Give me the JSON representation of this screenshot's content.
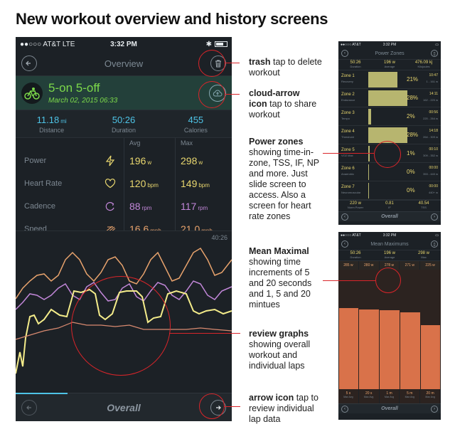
{
  "page_title": "New workout overview and history screens",
  "main_phone": {
    "status": {
      "carrier": "●●○○○ AT&T  LTE",
      "time": "3:32 PM",
      "bluetooth": "✱"
    },
    "nav_title": "Overview",
    "workout": {
      "name": "5-on 5-off",
      "date": "March 02, 2015  06:33"
    },
    "stats": [
      {
        "value": "11.18",
        "unit": "mi",
        "label": "Distance"
      },
      {
        "value": "50:26",
        "unit": "",
        "label": "Duration"
      },
      {
        "value": "455",
        "unit": "",
        "label": "Calories"
      }
    ],
    "metric_headers": {
      "avg": "Avg",
      "max": "Max"
    },
    "metrics": [
      {
        "name": "Power",
        "icon": "lightning-icon",
        "avg": "196",
        "avg_unit": "w",
        "max": "298",
        "max_unit": "w"
      },
      {
        "name": "Heart Rate",
        "icon": "heart-icon",
        "avg": "120",
        "avg_unit": "bpm",
        "max": "149",
        "max_unit": "bpm"
      },
      {
        "name": "Cadence",
        "icon": "cadence-icon",
        "avg": "88",
        "avg_unit": "rpm",
        "max": "117",
        "max_unit": "rpm"
      },
      {
        "name": "Speed",
        "icon": "speed-icon",
        "avg": "16.6",
        "avg_unit": "mph",
        "max": "21.0",
        "max_unit": "mph"
      }
    ],
    "graph_time": "40:26",
    "overall_label": "Overall",
    "progress_fraction": 0.24
  },
  "annotations": {
    "trash": {
      "title": "trash",
      "text": " tap to delete workout"
    },
    "cloud": {
      "title": "cloud-arrow icon",
      "text": " tap to share workout"
    },
    "power": {
      "title": "Power zones",
      "text": "showing time-in-zone, TSS, IF, NP and more. Just slide screen to access. Also a screen for heart rate zones"
    },
    "mean": {
      "title": "Mean Maximal",
      "text": "showing time increments of 5 and 20 seconds and 1, 5 and 20 mintues"
    },
    "review": {
      "title": "review graphs",
      "text": "showing overall workout and individual laps"
    },
    "arrow": {
      "title": "arrow icon",
      "text": " tap to review individual lap data"
    }
  },
  "zones_phone": {
    "status": {
      "carrier": "●●○○○ AT&T",
      "time": "3:32 PM",
      "battery": "▭"
    },
    "title": "Power Zones",
    "stats": [
      {
        "value": "50:26",
        "label": "Duration"
      },
      {
        "value": "196 w",
        "label": "Average"
      },
      {
        "value": "476.09 kj",
        "label": "Kilojoules"
      }
    ],
    "zones": [
      {
        "name": "Zone 1",
        "sub": "Recovery",
        "pct": "21%",
        "time": "10:47",
        "range": "1 - 161 w",
        "fill": 0.21
      },
      {
        "name": "Zone 2",
        "sub": "Endurance",
        "pct": "28%",
        "time": "14:11",
        "range": "162 - 220 w",
        "fill": 0.28
      },
      {
        "name": "Zone 3",
        "sub": "Tempo",
        "pct": "2%",
        "time": "00:56",
        "range": "220 - 264 w",
        "fill": 0.02
      },
      {
        "name": "Zone 4",
        "sub": "Threshold",
        "pct": "28%",
        "time": "14:18",
        "range": "264 - 309 w",
        "fill": 0.28
      },
      {
        "name": "Zone 5",
        "sub": "VO2 Max",
        "pct": "1%",
        "time": "00:10",
        "range": "309 - 352 w",
        "fill": 0.01
      },
      {
        "name": "Zone 6",
        "sub": "Anaerobic",
        "pct": "0%",
        "time": "00:00",
        "range": "353 - 440 w",
        "fill": 0.0
      },
      {
        "name": "Zone 7",
        "sub": "Neuromuscular",
        "pct": "0%",
        "time": "00:00",
        "range": "440+ w",
        "fill": 0.0
      }
    ],
    "footer": [
      {
        "value": "220 w",
        "label": "Norm Power"
      },
      {
        "value": "0.81",
        "label": "IF"
      },
      {
        "value": "40.54",
        "label": "TSS"
      }
    ],
    "overall_label": "Overall"
  },
  "mean_phone": {
    "status": {
      "carrier": "●●○○○ AT&T",
      "time": "3:32 PM",
      "battery": "▭"
    },
    "title": "Mean Maximums",
    "stats": [
      {
        "value": "50:26",
        "label": "Duration"
      },
      {
        "value": "196 w",
        "label": "Average"
      },
      {
        "value": "298 w",
        "label": "Max"
      }
    ],
    "top_values": [
      "285 w",
      "280 w",
      "278 w",
      "271 w",
      "225 w"
    ],
    "intervals": [
      {
        "value": "5 s",
        "label": "Max Avg"
      },
      {
        "value": "20 s",
        "label": "Max Avg"
      },
      {
        "value": "1 m",
        "label": "Max Avg"
      },
      {
        "value": "5 m",
        "label": "Max Avg"
      },
      {
        "value": "20 m",
        "label": "Max Avg"
      }
    ],
    "bar_values": [
      285,
      280,
      278,
      271,
      225
    ],
    "overall_label": "Overall"
  }
}
